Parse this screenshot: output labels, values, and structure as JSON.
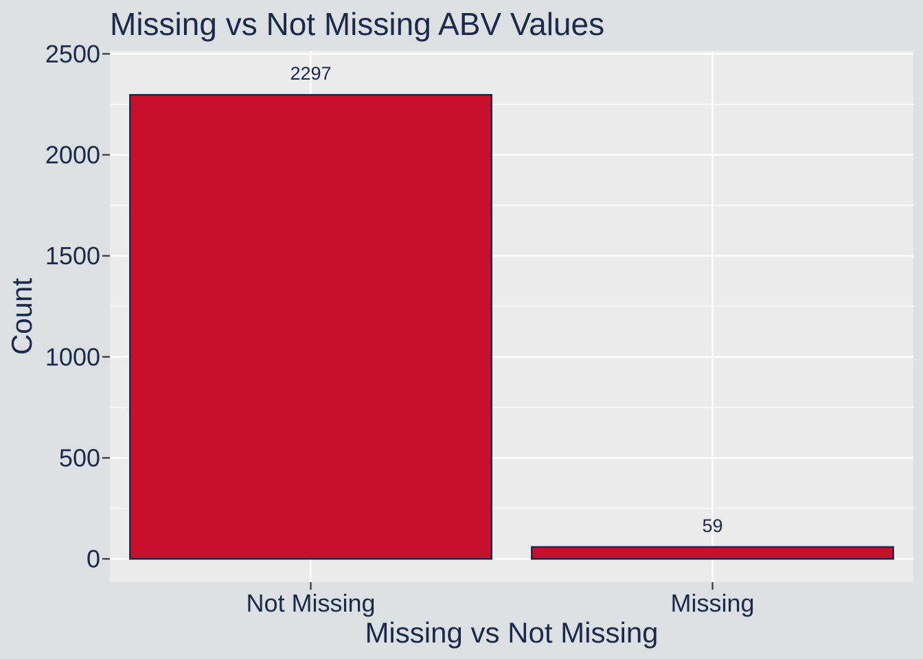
{
  "chart_data": {
    "type": "bar",
    "title": "Missing vs Not Missing ABV Values",
    "xlabel": "Missing vs Not Missing",
    "ylabel": "Count",
    "categories": [
      "Not Missing",
      "Missing"
    ],
    "values": [
      2297,
      59
    ],
    "data_labels": [
      "2297",
      "59"
    ],
    "ylim": [
      -115,
      2515
    ],
    "yticks": [
      0,
      500,
      1000,
      1500,
      2000,
      2500
    ],
    "ytick_labels": [
      "0",
      "500",
      "1000",
      "1500",
      "2000",
      "2500"
    ],
    "grid": true,
    "legend": "none",
    "colors": {
      "background": "#dde0e2",
      "panel": "#ebebeb",
      "grid": "#ffffff",
      "bar_fill": "#c8102e",
      "bar_edge": "#1b2a4a",
      "text": "#1b2a4a"
    }
  }
}
